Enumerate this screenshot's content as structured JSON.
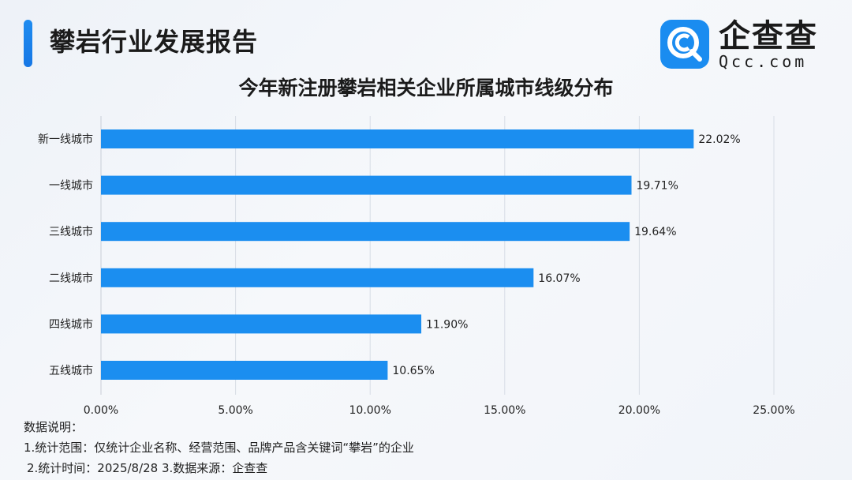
{
  "header": {
    "title": "攀岩行业发展报告"
  },
  "logo": {
    "name": "企查查",
    "domain": "Qcc.com"
  },
  "colors": {
    "accent": "#1a8cf0",
    "bar": "#1b8ef0",
    "grid": "#d8dde5"
  },
  "chart_data": {
    "type": "bar",
    "orientation": "horizontal",
    "title": "今年新注册攀岩相关企业所属城市线级分布",
    "categories": [
      "新一线城市",
      "一线城市",
      "三线城市",
      "二线城市",
      "四线城市",
      "五线城市"
    ],
    "values": [
      22.02,
      19.71,
      19.64,
      16.07,
      11.9,
      10.65
    ],
    "value_labels": [
      "22.02%",
      "19.71%",
      "19.64%",
      "16.07%",
      "11.90%",
      "10.65%"
    ],
    "x_ticks": [
      "0.00%",
      "5.00%",
      "10.00%",
      "15.00%",
      "20.00%",
      "25.00%"
    ],
    "xlim": [
      0,
      25
    ],
    "grid": "vertical"
  },
  "footnotes": {
    "heading": "数据说明：",
    "line1": "1.统计范围：仅统计企业名称、经营范围、品牌产品含关键词“攀岩”的企业",
    "line2": "2.统计时间：2025/8/28  3.数据来源：企查查"
  }
}
